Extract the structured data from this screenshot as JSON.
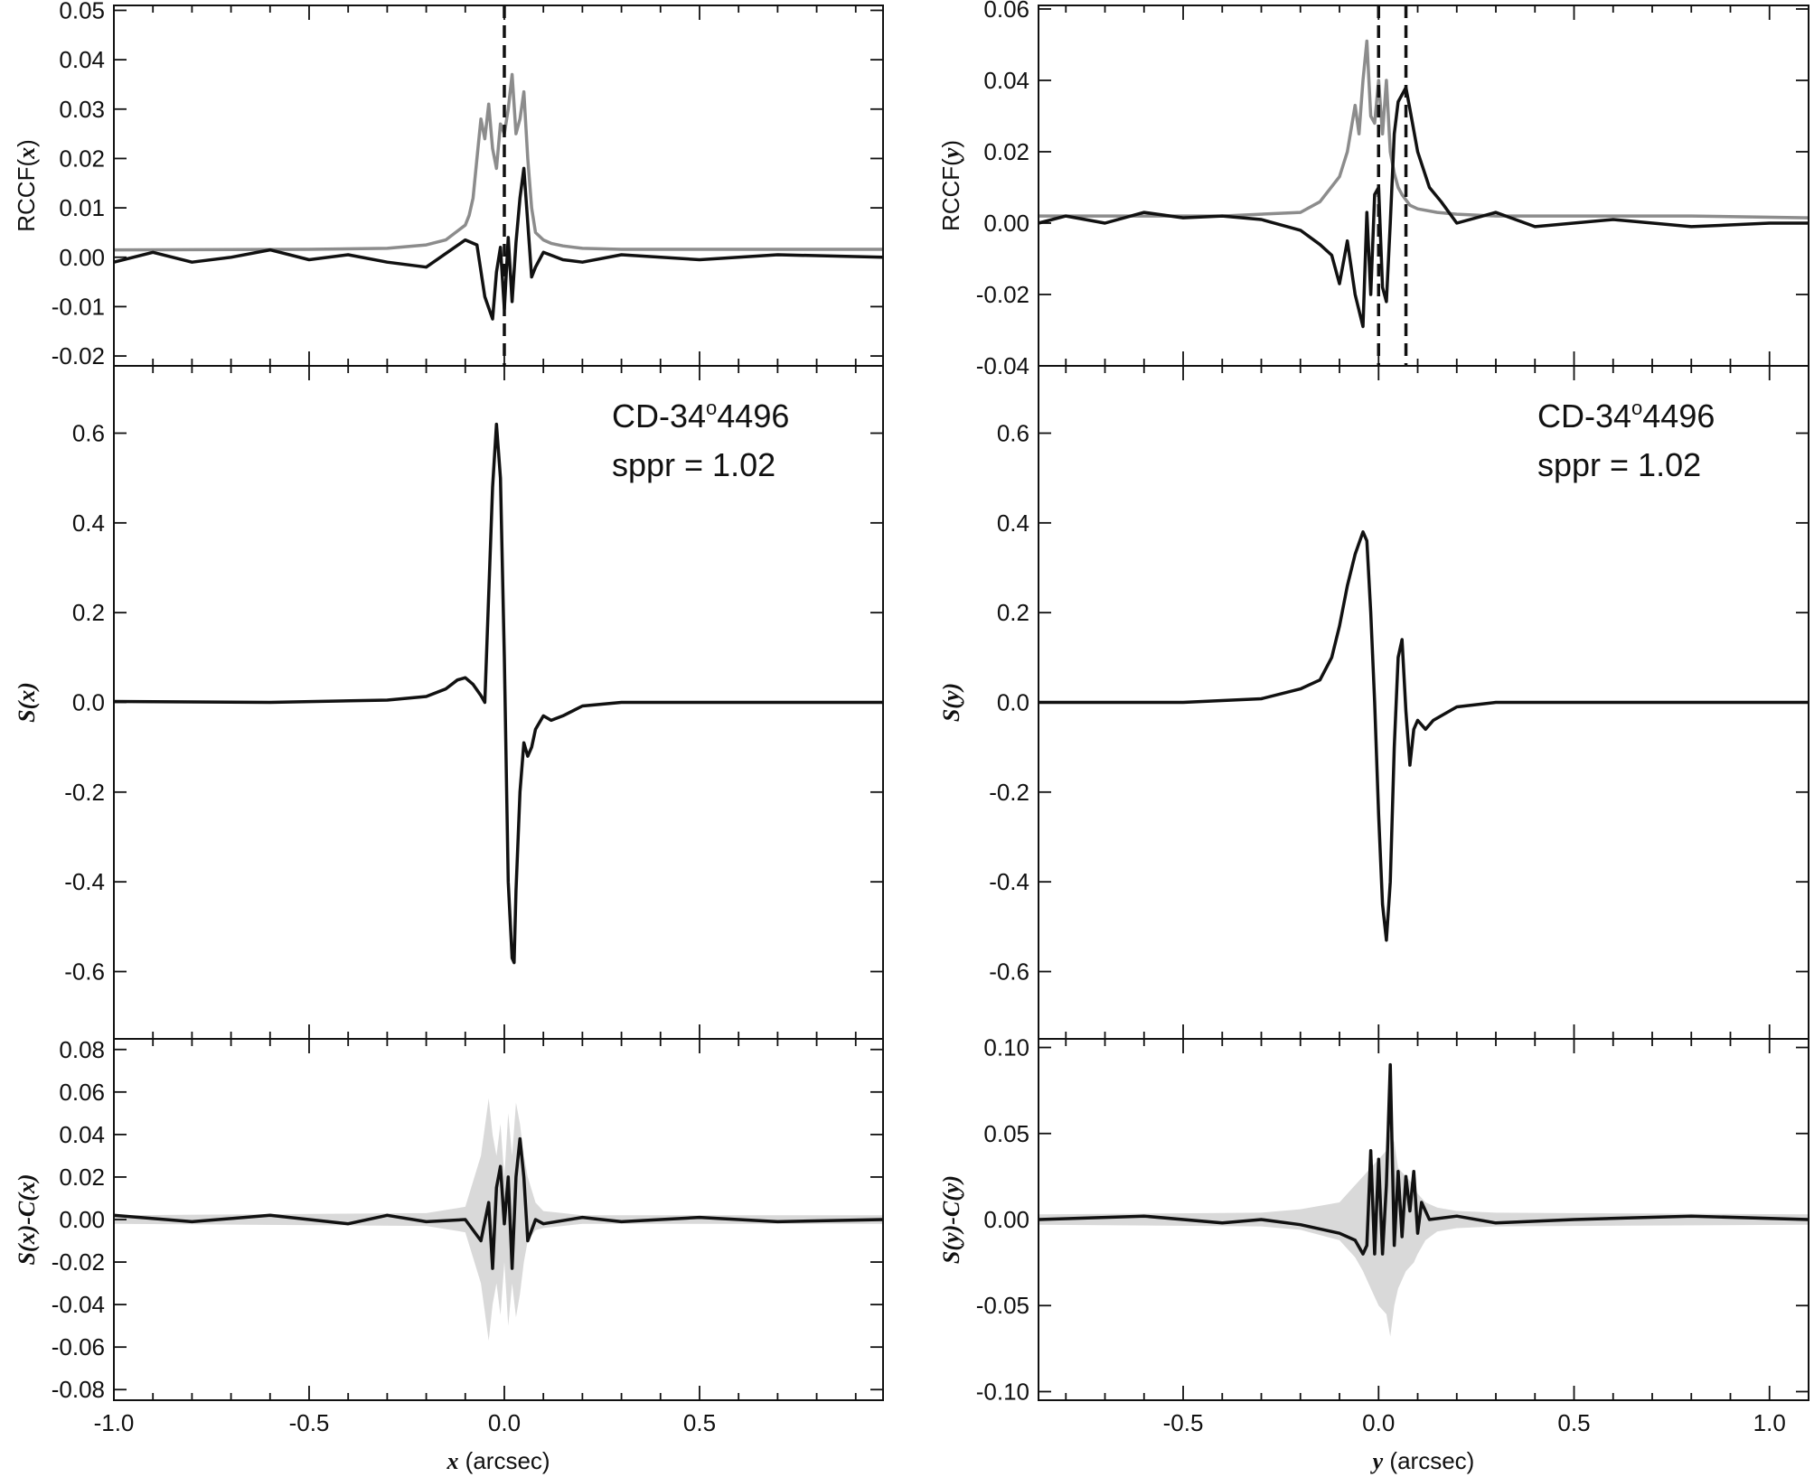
{
  "chart_data": [
    {
      "type": "line",
      "panel": "left-top",
      "xlim": [
        -1.0,
        0.97
      ],
      "ylim": [
        -0.022,
        0.051
      ],
      "ylabel": {
        "prefix": "RCCF(",
        "var": "x",
        "suffix": ")"
      },
      "yticks": [
        -0.02,
        -0.01,
        0.0,
        0.01,
        0.02,
        0.03,
        0.04,
        0.05
      ],
      "ytick_labels": [
        "-0.02",
        "-0.01",
        "0.00",
        "0.01",
        "0.02",
        "0.03",
        "0.04",
        "0.05"
      ],
      "xticks": [
        -1.0,
        -0.5,
        0.0,
        0.5
      ],
      "vlines": [
        0.0
      ],
      "series": [
        {
          "color": "#8c8c8c",
          "x": [
            -1.0,
            -0.5,
            -0.3,
            -0.2,
            -0.15,
            -0.1,
            -0.09,
            -0.08,
            -0.07,
            -0.06,
            -0.05,
            -0.04,
            -0.03,
            -0.02,
            -0.01,
            0.0,
            0.01,
            0.02,
            0.03,
            0.04,
            0.05,
            0.06,
            0.07,
            0.08,
            0.1,
            0.12,
            0.15,
            0.2,
            0.3,
            0.5,
            0.97
          ],
          "y": [
            0.0015,
            0.0016,
            0.0018,
            0.0025,
            0.0035,
            0.0065,
            0.0085,
            0.012,
            0.02,
            0.028,
            0.024,
            0.031,
            0.022,
            0.018,
            0.027,
            0.025,
            0.03,
            0.037,
            0.025,
            0.028,
            0.0335,
            0.02,
            0.01,
            0.005,
            0.0035,
            0.0028,
            0.0023,
            0.0018,
            0.0016,
            0.0016,
            0.0016
          ]
        },
        {
          "color": "#111111",
          "x": [
            -1.0,
            -0.9,
            -0.8,
            -0.7,
            -0.6,
            -0.5,
            -0.4,
            -0.3,
            -0.2,
            -0.1,
            -0.07,
            -0.05,
            -0.03,
            -0.02,
            -0.01,
            0.0,
            0.01,
            0.02,
            0.03,
            0.04,
            0.05,
            0.06,
            0.07,
            0.08,
            0.1,
            0.15,
            0.2,
            0.3,
            0.5,
            0.7,
            0.97
          ],
          "y": [
            -0.001,
            0.001,
            -0.001,
            0.0,
            0.0015,
            -0.0005,
            0.0005,
            -0.001,
            -0.002,
            0.0035,
            0.0025,
            -0.008,
            -0.0125,
            -0.003,
            0.002,
            -0.0105,
            0.004,
            -0.009,
            0.003,
            0.012,
            0.018,
            0.007,
            -0.004,
            -0.002,
            0.001,
            -0.0005,
            -0.001,
            0.0005,
            -0.0005,
            0.0005,
            0.0
          ]
        }
      ]
    },
    {
      "type": "line",
      "panel": "right-top",
      "xlim": [
        -0.87,
        1.1
      ],
      "ylim": [
        -0.04,
        0.061
      ],
      "ylabel": {
        "prefix": "RCCF(",
        "var": "y",
        "suffix": ")"
      },
      "yticks": [
        -0.04,
        -0.02,
        0.0,
        0.02,
        0.04,
        0.06
      ],
      "ytick_labels": [
        "-0.04",
        "-0.02",
        "0.00",
        "0.02",
        "0.04",
        "0.06"
      ],
      "xticks": [
        -0.5,
        0.0,
        0.5,
        1.0
      ],
      "vlines": [
        0.0,
        0.07
      ],
      "series": [
        {
          "color": "#8c8c8c",
          "x": [
            -0.87,
            -0.6,
            -0.4,
            -0.2,
            -0.15,
            -0.1,
            -0.08,
            -0.06,
            -0.05,
            -0.04,
            -0.03,
            -0.02,
            -0.01,
            0.0,
            0.01,
            0.02,
            0.03,
            0.04,
            0.05,
            0.06,
            0.08,
            0.1,
            0.15,
            0.2,
            0.3,
            0.5,
            0.8,
            1.1
          ],
          "y": [
            0.002,
            0.002,
            0.002,
            0.003,
            0.006,
            0.013,
            0.02,
            0.033,
            0.025,
            0.04,
            0.051,
            0.03,
            0.028,
            0.04,
            0.025,
            0.04,
            0.02,
            0.014,
            0.01,
            0.008,
            0.005,
            0.004,
            0.003,
            0.0025,
            0.002,
            0.002,
            0.002,
            0.0015
          ]
        },
        {
          "color": "#111111",
          "x": [
            -0.87,
            -0.8,
            -0.7,
            -0.6,
            -0.5,
            -0.4,
            -0.3,
            -0.2,
            -0.15,
            -0.12,
            -0.1,
            -0.08,
            -0.06,
            -0.04,
            -0.03,
            -0.02,
            -0.01,
            0.0,
            0.01,
            0.02,
            0.03,
            0.04,
            0.05,
            0.07,
            0.08,
            0.1,
            0.13,
            0.16,
            0.2,
            0.3,
            0.4,
            0.6,
            0.8,
            1.0,
            1.1
          ],
          "y": [
            0.0,
            0.002,
            0.0,
            0.003,
            0.0015,
            0.002,
            0.001,
            -0.002,
            -0.006,
            -0.009,
            -0.017,
            -0.005,
            -0.02,
            -0.029,
            0.003,
            -0.02,
            0.008,
            0.01,
            -0.018,
            -0.022,
            0.0,
            0.025,
            0.034,
            0.038,
            0.032,
            0.02,
            0.01,
            0.006,
            0.0,
            0.003,
            -0.001,
            0.001,
            -0.001,
            0.0,
            0.0
          ]
        }
      ]
    },
    {
      "type": "line",
      "panel": "left-middle",
      "xlim": [
        -1.0,
        0.97
      ],
      "ylim": [
        -0.75,
        0.75
      ],
      "ylabel": {
        "prefix": "",
        "var": "S(x)",
        "suffix": ""
      },
      "yticks": [
        -0.6,
        -0.4,
        -0.2,
        0.0,
        0.2,
        0.4,
        0.6
      ],
      "ytick_labels": [
        "-0.6",
        "-0.4",
        "-0.2",
        "0.0",
        "0.2",
        "0.4",
        "0.6"
      ],
      "xticks": [
        -1.0,
        -0.5,
        0.0,
        0.5
      ],
      "annotation": {
        "star": "CD-34",
        "deg": "o",
        "num": "4496",
        "sppr": "sppr = 1.02"
      },
      "series": [
        {
          "color": "#111111",
          "x": [
            -1.0,
            -0.6,
            -0.3,
            -0.2,
            -0.15,
            -0.12,
            -0.1,
            -0.08,
            -0.06,
            -0.05,
            -0.03,
            -0.02,
            -0.01,
            0.0,
            0.01,
            0.02,
            0.025,
            0.03,
            0.04,
            0.05,
            0.06,
            0.07,
            0.08,
            0.1,
            0.12,
            0.15,
            0.2,
            0.3,
            0.5,
            0.97
          ],
          "y": [
            0.002,
            0.0,
            0.005,
            0.013,
            0.03,
            0.05,
            0.055,
            0.04,
            0.015,
            0.0,
            0.48,
            0.62,
            0.5,
            0.1,
            -0.4,
            -0.57,
            -0.58,
            -0.42,
            -0.2,
            -0.09,
            -0.12,
            -0.1,
            -0.06,
            -0.03,
            -0.04,
            -0.03,
            -0.008,
            0.0,
            0.0,
            0.0
          ]
        }
      ]
    },
    {
      "type": "line",
      "panel": "right-middle",
      "xlim": [
        -0.87,
        1.1
      ],
      "ylim": [
        -0.75,
        0.75
      ],
      "ylabel": {
        "prefix": "",
        "var": "S(y)",
        "suffix": ""
      },
      "yticks": [
        -0.6,
        -0.4,
        -0.2,
        0.0,
        0.2,
        0.4,
        0.6
      ],
      "ytick_labels": [
        "-0.6",
        "-0.4",
        "-0.2",
        "0.0",
        "0.2",
        "0.4",
        "0.6"
      ],
      "xticks": [
        -0.5,
        0.0,
        0.5,
        1.0
      ],
      "annotation": {
        "star": "CD-34",
        "deg": "o",
        "num": "4496",
        "sppr": "sppr = 1.02"
      },
      "series": [
        {
          "color": "#111111",
          "x": [
            -0.87,
            -0.5,
            -0.3,
            -0.2,
            -0.15,
            -0.12,
            -0.1,
            -0.08,
            -0.06,
            -0.04,
            -0.03,
            -0.02,
            -0.01,
            0.0,
            0.01,
            0.02,
            0.03,
            0.04,
            0.05,
            0.06,
            0.07,
            0.08,
            0.09,
            0.1,
            0.12,
            0.14,
            0.2,
            0.3,
            0.5,
            1.1
          ],
          "y": [
            0.0,
            0.0,
            0.008,
            0.03,
            0.05,
            0.1,
            0.17,
            0.26,
            0.33,
            0.38,
            0.36,
            0.2,
            0.0,
            -0.25,
            -0.45,
            -0.53,
            -0.4,
            -0.1,
            0.1,
            0.14,
            -0.02,
            -0.14,
            -0.06,
            -0.04,
            -0.06,
            -0.04,
            -0.01,
            0.0,
            0.0,
            0.0
          ]
        }
      ]
    },
    {
      "type": "area",
      "panel": "left-bottom",
      "xlim": [
        -1.0,
        0.97
      ],
      "ylim": [
        -0.085,
        0.085
      ],
      "ylabel": {
        "prefix": "",
        "var": "S(x)-C(x)",
        "suffix": ""
      },
      "yticks": [
        -0.08,
        -0.06,
        -0.04,
        -0.02,
        0.0,
        0.02,
        0.04,
        0.06,
        0.08
      ],
      "ytick_labels": [
        "-0.08",
        "-0.06",
        "-0.04",
        "-0.02",
        "0.00",
        "0.02",
        "0.04",
        "0.06",
        "0.08"
      ],
      "xticks": [
        -1.0,
        -0.5,
        0.0,
        0.5
      ],
      "xtick_labels": [
        "-1.0",
        "-0.5",
        "0.0",
        "0.5"
      ],
      "xlabel": {
        "var": "x",
        "rest": " (arcsec)"
      },
      "band": {
        "color": "#d9d9d9",
        "x": [
          -1.0,
          -0.2,
          -0.1,
          -0.06,
          -0.04,
          -0.03,
          -0.02,
          -0.01,
          0.0,
          0.01,
          0.02,
          0.03,
          0.04,
          0.05,
          0.06,
          0.08,
          0.1,
          0.15,
          0.2,
          0.97
        ],
        "upper": [
          0.002,
          0.003,
          0.006,
          0.03,
          0.057,
          0.04,
          0.03,
          0.045,
          0.02,
          0.05,
          0.03,
          0.055,
          0.045,
          0.03,
          0.02,
          0.008,
          0.004,
          0.003,
          0.002,
          0.002
        ],
        "lower": [
          -0.002,
          -0.003,
          -0.006,
          -0.03,
          -0.057,
          -0.04,
          -0.03,
          -0.045,
          -0.02,
          -0.05,
          -0.03,
          -0.046,
          -0.035,
          -0.02,
          -0.01,
          -0.005,
          -0.004,
          -0.003,
          -0.002,
          -0.002
        ]
      },
      "series": [
        {
          "color": "#111111",
          "x": [
            -1.0,
            -0.8,
            -0.6,
            -0.5,
            -0.4,
            -0.3,
            -0.2,
            -0.1,
            -0.06,
            -0.04,
            -0.03,
            -0.02,
            -0.01,
            0.0,
            0.01,
            0.02,
            0.03,
            0.04,
            0.05,
            0.06,
            0.08,
            0.1,
            0.2,
            0.3,
            0.5,
            0.7,
            0.97
          ],
          "y": [
            0.002,
            -0.001,
            0.002,
            0.0,
            -0.002,
            0.002,
            -0.001,
            0.0,
            -0.01,
            0.008,
            -0.023,
            0.015,
            0.025,
            -0.002,
            0.02,
            -0.023,
            0.02,
            0.038,
            0.02,
            -0.01,
            0.0,
            -0.002,
            0.001,
            -0.001,
            0.001,
            -0.001,
            0.0
          ]
        }
      ]
    },
    {
      "type": "area",
      "panel": "right-bottom",
      "xlim": [
        -0.87,
        1.1
      ],
      "ylim": [
        -0.105,
        0.105
      ],
      "ylabel": {
        "prefix": "",
        "var": "S(y)-C(y)",
        "suffix": ""
      },
      "yticks": [
        -0.1,
        -0.05,
        0.0,
        0.05,
        0.1
      ],
      "ytick_labels": [
        "-0.10",
        "-0.05",
        "0.00",
        "0.05",
        "0.10"
      ],
      "xticks": [
        -0.5,
        0.0,
        0.5,
        1.0
      ],
      "xtick_labels": [
        "-0.5",
        "0.0",
        "0.5",
        "1.0"
      ],
      "xlabel": {
        "var": "y",
        "rest": " (arcsec)"
      },
      "band": {
        "color": "#d9d9d9",
        "x": [
          -0.87,
          -0.3,
          -0.2,
          -0.1,
          -0.06,
          -0.04,
          -0.02,
          0.0,
          0.02,
          0.03,
          0.04,
          0.05,
          0.07,
          0.09,
          0.1,
          0.12,
          0.15,
          0.2,
          0.3,
          1.1
        ],
        "upper": [
          0.003,
          0.004,
          0.006,
          0.01,
          0.02,
          0.025,
          0.03,
          0.035,
          0.04,
          0.05,
          0.045,
          0.03,
          0.025,
          0.02,
          0.015,
          0.01,
          0.007,
          0.005,
          0.004,
          0.003
        ],
        "lower": [
          -0.003,
          -0.004,
          -0.006,
          -0.012,
          -0.022,
          -0.03,
          -0.04,
          -0.05,
          -0.055,
          -0.068,
          -0.05,
          -0.04,
          -0.03,
          -0.025,
          -0.02,
          -0.012,
          -0.007,
          -0.005,
          -0.004,
          -0.003
        ]
      },
      "series": [
        {
          "color": "#111111",
          "x": [
            -0.87,
            -0.6,
            -0.4,
            -0.3,
            -0.2,
            -0.1,
            -0.06,
            -0.04,
            -0.03,
            -0.02,
            -0.01,
            0.0,
            0.01,
            0.02,
            0.03,
            0.04,
            0.05,
            0.06,
            0.07,
            0.08,
            0.09,
            0.1,
            0.11,
            0.13,
            0.2,
            0.3,
            0.5,
            0.8,
            1.1
          ],
          "y": [
            0.0,
            0.002,
            -0.002,
            0.0,
            -0.003,
            -0.008,
            -0.012,
            -0.02,
            -0.015,
            0.04,
            -0.02,
            0.035,
            -0.02,
            0.02,
            0.09,
            -0.015,
            0.028,
            -0.01,
            0.025,
            0.005,
            0.028,
            -0.008,
            0.01,
            0.0,
            0.002,
            -0.002,
            0.0,
            0.002,
            0.0
          ]
        }
      ]
    }
  ]
}
